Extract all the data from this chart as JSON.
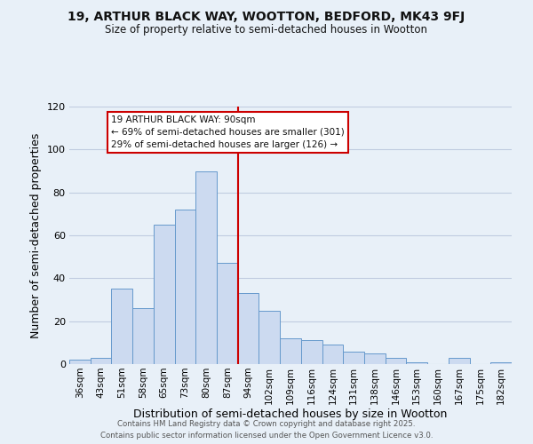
{
  "title": "19, ARTHUR BLACK WAY, WOOTTON, BEDFORD, MK43 9FJ",
  "subtitle": "Size of property relative to semi-detached houses in Wootton",
  "xlabel": "Distribution of semi-detached houses by size in Wootton",
  "ylabel": "Number of semi-detached properties",
  "bar_color": "#ccdaf0",
  "bar_edge_color": "#6699cc",
  "categories": [
    "36sqm",
    "43sqm",
    "51sqm",
    "58sqm",
    "65sqm",
    "73sqm",
    "80sqm",
    "87sqm",
    "94sqm",
    "102sqm",
    "109sqm",
    "116sqm",
    "124sqm",
    "131sqm",
    "138sqm",
    "146sqm",
    "153sqm",
    "160sqm",
    "167sqm",
    "175sqm",
    "182sqm"
  ],
  "values": [
    2,
    3,
    35,
    26,
    65,
    72,
    90,
    47,
    33,
    25,
    12,
    11,
    9,
    6,
    5,
    3,
    1,
    0,
    3,
    0,
    1
  ],
  "vline_pos": 7.5,
  "vline_color": "#cc0000",
  "annotation_title": "19 ARTHUR BLACK WAY: 90sqm",
  "annotation_line1": "← 69% of semi-detached houses are smaller (301)",
  "annotation_line2": "29% of semi-detached houses are larger (126) →",
  "annotation_box_facecolor": "#ffffff",
  "annotation_box_edgecolor": "#cc0000",
  "ylim": [
    0,
    120
  ],
  "yticks": [
    0,
    20,
    40,
    60,
    80,
    100,
    120
  ],
  "grid_color": "#c0cce0",
  "bg_color": "#e8f0f8",
  "footer1": "Contains HM Land Registry data © Crown copyright and database right 2025.",
  "footer2": "Contains public sector information licensed under the Open Government Licence v3.0.",
  "figsize": [
    6.0,
    5.0
  ],
  "dpi": 100
}
